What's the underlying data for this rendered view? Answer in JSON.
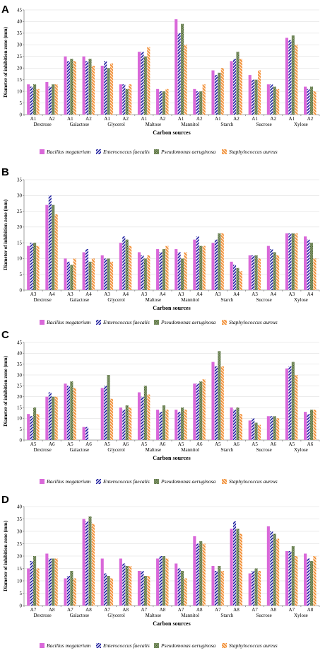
{
  "series_names": [
    "Bacillus megaterium",
    "Enterococcus faecalis",
    "Pseudomonas aeruginosa",
    "Staphylococcus aureus"
  ],
  "series_colors": [
    "#d968d9",
    "#1a1a9e",
    "#2e4a18",
    "#f08020"
  ],
  "chart_data": [
    {
      "panel": "A",
      "type": "bar",
      "ylabel": "Diameter of inhibition zone (mm)",
      "xlabel": "Carbon sources",
      "ylim": [
        0,
        45
      ],
      "yticks": [
        0,
        5,
        10,
        15,
        20,
        25,
        30,
        35,
        40,
        45
      ],
      "groups": [
        "Dextrose",
        "Galactose",
        "Glycerol",
        "Maltose",
        "Mannitol",
        "Starch",
        "Sucrose",
        "Xylose"
      ],
      "conditions": [
        "A1",
        "A2"
      ],
      "series": [
        {
          "name": "Bacillus megaterium",
          "values": [
            13,
            14,
            25,
            25,
            21,
            13,
            27,
            11,
            41,
            11,
            19,
            23,
            17,
            13,
            33,
            12
          ]
        },
        {
          "name": "Enterococcus faecalis",
          "values": [
            12,
            12,
            23,
            23,
            23,
            13,
            27,
            10,
            35,
            10,
            17,
            24,
            15,
            13,
            32,
            11
          ]
        },
        {
          "name": "Pseudomonas aeruginosa",
          "values": [
            13,
            13,
            24,
            24,
            20,
            11,
            25,
            10,
            39,
            10,
            18,
            27,
            15,
            12,
            34,
            12
          ]
        },
        {
          "name": "Staphylococcus aureus",
          "values": [
            11,
            13,
            23,
            21,
            22,
            13,
            29,
            11,
            30,
            13,
            20,
            24,
            19,
            11,
            30,
            10
          ]
        }
      ]
    },
    {
      "panel": "B",
      "type": "bar",
      "ylabel": "Diameter of inhibition zone (mm)",
      "xlabel": "Carbon sources",
      "ylim": [
        0,
        35
      ],
      "yticks": [
        0,
        5,
        10,
        15,
        20,
        25,
        30,
        35
      ],
      "groups": [
        "Dextrose",
        "Galactose",
        "Glycerol",
        "Maltose",
        "Mannitol",
        "Starch",
        "Sucrose",
        "Xylose"
      ],
      "conditions": [
        "A3",
        "A4"
      ],
      "series": [
        {
          "name": "Bacillus megaterium",
          "values": [
            14,
            27,
            10,
            12,
            11,
            15,
            12,
            13,
            13,
            16,
            15,
            9,
            11,
            14,
            18,
            17
          ]
        },
        {
          "name": "Enterococcus faecalis",
          "values": [
            15,
            30,
            9,
            13,
            10,
            17,
            11,
            12,
            12,
            17,
            16,
            8,
            11,
            13,
            18,
            16
          ]
        },
        {
          "name": "Pseudomonas aeruginosa",
          "values": [
            15,
            27,
            8,
            9,
            10,
            16,
            10,
            13,
            10,
            14,
            18,
            7,
            11,
            12,
            18,
            15
          ]
        },
        {
          "name": "Staphylococcus aureus",
          "values": [
            14,
            24,
            10,
            10,
            9,
            14,
            11,
            14,
            12,
            14,
            18,
            6,
            10,
            11,
            18,
            10
          ]
        }
      ]
    },
    {
      "panel": "C",
      "type": "bar",
      "ylabel": "Diameter of inhibition zone (mm)",
      "xlabel": "Carbon sources",
      "ylim": [
        0,
        45
      ],
      "yticks": [
        0,
        5,
        10,
        15,
        20,
        25,
        30,
        35,
        40,
        45
      ],
      "groups": [
        "Dextrose",
        "Galactose",
        "Glycerol",
        "Maltose",
        "Mannitol",
        "Starch",
        "Sucrose",
        "Xylose"
      ],
      "conditions": [
        "A5",
        "A6"
      ],
      "series": [
        {
          "name": "Bacillus megaterium",
          "values": [
            12,
            20,
            26,
            6,
            24,
            15,
            22,
            14,
            14,
            26,
            36,
            15,
            9,
            11,
            33,
            13
          ]
        },
        {
          "name": "Enterococcus faecalis",
          "values": [
            11,
            22,
            25,
            6,
            25,
            14,
            20,
            13,
            13,
            26,
            34,
            14,
            10,
            11,
            34,
            12
          ]
        },
        {
          "name": "Pseudomonas aeruginosa",
          "values": [
            15,
            20,
            27,
            0,
            30,
            16,
            25,
            16,
            15,
            27,
            41,
            15,
            8,
            11,
            36,
            14
          ]
        },
        {
          "name": "Staphylococcus aureus",
          "values": [
            12,
            20,
            24,
            0,
            19,
            15,
            21,
            14,
            14,
            28,
            34,
            12,
            7,
            10,
            30,
            14
          ]
        }
      ]
    },
    {
      "panel": "D",
      "type": "bar",
      "ylabel": "Diameter of inhibition zone (mm)",
      "xlabel": "Carbon sources",
      "ylim": [
        0,
        40
      ],
      "yticks": [
        0,
        5,
        10,
        15,
        20,
        25,
        30,
        35,
        40
      ],
      "groups": [
        "Dextrose",
        "Galactose",
        "Glycerol",
        "Maltose",
        "Mannitol",
        "Starch",
        "Sucrose",
        "Xylose"
      ],
      "conditions": [
        "A7",
        "A8"
      ],
      "series": [
        {
          "name": "Bacillus megaterium",
          "values": [
            15,
            21,
            11,
            35,
            19,
            19,
            14,
            19,
            17,
            28,
            16,
            31,
            13,
            32,
            22,
            21
          ]
        },
        {
          "name": "Enterococcus faecalis",
          "values": [
            18,
            19,
            12,
            34,
            13,
            17,
            14,
            20,
            15,
            25,
            14,
            34,
            14,
            30,
            22,
            19
          ]
        },
        {
          "name": "Pseudomonas aeruginosa",
          "values": [
            20,
            19,
            14,
            36,
            12,
            16,
            12,
            20,
            14,
            26,
            16,
            31,
            15,
            29,
            24,
            18
          ]
        },
        {
          "name": "Staphylococcus aureus",
          "values": [
            15,
            19,
            11,
            33,
            11,
            16,
            12,
            19,
            11,
            25,
            14,
            29,
            14,
            27,
            20,
            20
          ]
        }
      ]
    }
  ]
}
